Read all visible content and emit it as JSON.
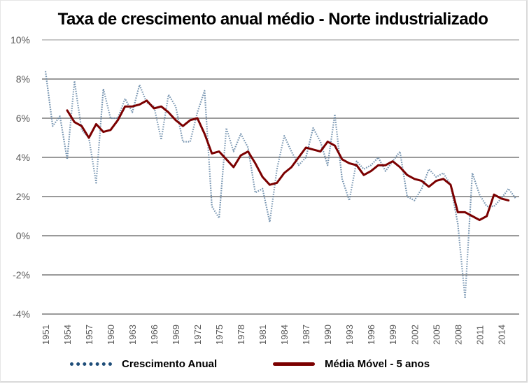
{
  "chart_data": {
    "type": "line",
    "title": "Taxa de crescimento anual médio - Norte industrializado",
    "xlabel": "",
    "ylabel": "",
    "ylim": [
      -4,
      10
    ],
    "y_ticks": [
      10,
      8,
      6,
      4,
      2,
      0,
      -2,
      -4
    ],
    "y_tick_labels": [
      "10%",
      "8%",
      "6%",
      "4%",
      "2%",
      "0%",
      "-2%",
      "-4%"
    ],
    "x_tick_labels": [
      "1951",
      "1954",
      "1957",
      "1960",
      "1963",
      "1966",
      "1969",
      "1972",
      "1975",
      "1978",
      "1981",
      "1984",
      "1987",
      "1990",
      "1993",
      "1996",
      "1999",
      "2002",
      "2005",
      "2008",
      "2011",
      "2014"
    ],
    "grid": true,
    "legend_position": "bottom",
    "x": [
      1951,
      1952,
      1953,
      1954,
      1955,
      1956,
      1957,
      1958,
      1959,
      1960,
      1961,
      1962,
      1963,
      1964,
      1965,
      1966,
      1967,
      1968,
      1969,
      1970,
      1971,
      1972,
      1973,
      1974,
      1975,
      1976,
      1977,
      1978,
      1979,
      1980,
      1981,
      1982,
      1983,
      1984,
      1985,
      1986,
      1987,
      1988,
      1989,
      1990,
      1991,
      1992,
      1993,
      1994,
      1995,
      1996,
      1997,
      1998,
      1999,
      2000,
      2001,
      2002,
      2003,
      2004,
      2005,
      2006,
      2007,
      2008,
      2009,
      2010,
      2011,
      2012,
      2013,
      2014,
      2015,
      2016
    ],
    "series": [
      {
        "name": "Crescimento Anual",
        "color": "#1f4e79",
        "style": "dotted",
        "values": [
          8.4,
          5.6,
          6.1,
          3.9,
          7.9,
          5.4,
          5.0,
          2.7,
          7.5,
          6.0,
          6.0,
          7.0,
          6.3,
          7.7,
          6.8,
          6.6,
          4.9,
          7.2,
          6.6,
          4.8,
          4.8,
          6.3,
          7.4,
          1.5,
          0.9,
          5.5,
          4.3,
          5.2,
          4.5,
          2.2,
          2.4,
          0.7,
          3.4,
          5.1,
          4.3,
          3.6,
          4.0,
          5.5,
          4.8,
          3.6,
          6.2,
          2.9,
          1.8,
          3.8,
          3.4,
          3.6,
          4.0,
          3.3,
          3.8,
          4.3,
          2.0,
          1.8,
          2.4,
          3.4,
          3.0,
          3.2,
          2.6,
          0.6,
          -3.2,
          3.2,
          2.1,
          1.5,
          1.5,
          1.9,
          2.4,
          1.9
        ]
      },
      {
        "name": "Média Móvel - 5 anos",
        "color": "#7b0000",
        "style": "solid",
        "values": [
          null,
          null,
          null,
          6.4,
          5.8,
          5.6,
          5.0,
          5.7,
          5.3,
          5.4,
          5.9,
          6.6,
          6.6,
          6.7,
          6.9,
          6.5,
          6.6,
          6.3,
          5.9,
          5.6,
          5.9,
          6.0,
          5.2,
          4.2,
          4.3,
          3.9,
          3.5,
          4.1,
          4.3,
          3.7,
          3.0,
          2.6,
          2.7,
          3.2,
          3.5,
          4.0,
          4.5,
          4.4,
          4.3,
          4.8,
          4.6,
          3.9,
          3.7,
          3.6,
          3.1,
          3.3,
          3.6,
          3.6,
          3.8,
          3.5,
          3.1,
          2.9,
          2.8,
          2.5,
          2.8,
          2.9,
          2.6,
          1.2,
          1.2,
          1.0,
          0.8,
          1.0,
          2.1,
          1.9,
          1.8,
          null
        ]
      }
    ]
  },
  "legend": {
    "items": [
      {
        "label": "Crescimento Anual"
      },
      {
        "label": "Média Móvel - 5 anos"
      }
    ]
  }
}
